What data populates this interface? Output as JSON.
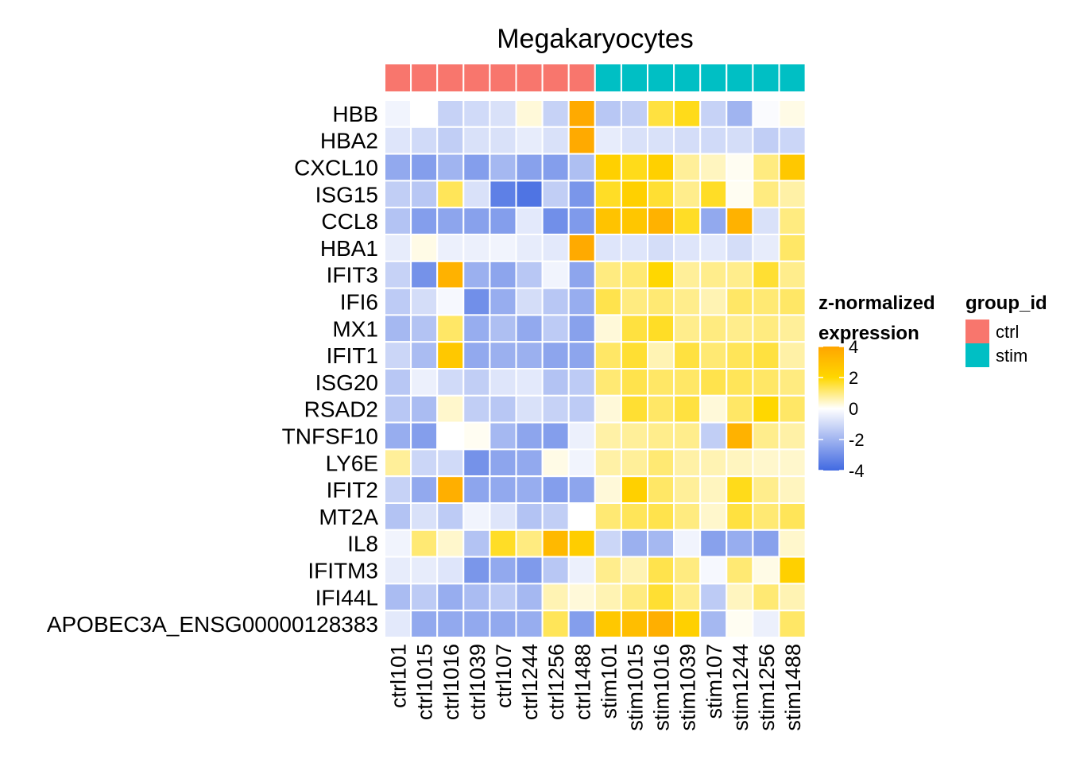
{
  "chart_data": {
    "type": "heatmap",
    "title": "Megakaryocytes",
    "rows": [
      "HBB",
      "HBA2",
      "CXCL10",
      "ISG15",
      "CCL8",
      "HBA1",
      "IFIT3",
      "IFI6",
      "MX1",
      "IFIT1",
      "ISG20",
      "RSAD2",
      "TNFSF10",
      "LY6E",
      "IFIT2",
      "MT2A",
      "IL8",
      "IFITM3",
      "IFI44L",
      "APOBEC3A_ENSG00000128383"
    ],
    "columns": [
      "ctrl101",
      "ctrl1015",
      "ctrl1016",
      "ctrl1039",
      "ctrl107",
      "ctrl1244",
      "ctrl1256",
      "ctrl1488",
      "stim101",
      "stim1015",
      "stim1016",
      "stim1039",
      "stim107",
      "stim1244",
      "stim1256",
      "stim1488"
    ],
    "column_groups": [
      "ctrl",
      "ctrl",
      "ctrl",
      "ctrl",
      "ctrl",
      "ctrl",
      "ctrl",
      "ctrl",
      "stim",
      "stim",
      "stim",
      "stim",
      "stim",
      "stim",
      "stim",
      "stim"
    ],
    "values": [
      [
        -0.3,
        0.0,
        -1.2,
        -1.0,
        -0.8,
        0.3,
        -1.2,
        3.8,
        -1.5,
        -1.3,
        1.5,
        1.8,
        -1.2,
        -2.0,
        -0.1,
        0.2
      ],
      [
        -0.7,
        -1.0,
        -1.3,
        -0.8,
        -0.8,
        -0.5,
        -0.8,
        3.8,
        -0.5,
        -0.8,
        -0.8,
        -0.9,
        -1.0,
        -0.9,
        -1.3,
        -1.1
      ],
      [
        -2.3,
        -2.6,
        -2.0,
        -2.6,
        -1.9,
        -2.5,
        -2.6,
        -1.7,
        2.3,
        1.8,
        2.3,
        0.8,
        0.5,
        0.1,
        1.0,
        2.6
      ],
      [
        -1.3,
        -1.5,
        1.3,
        -0.8,
        -3.4,
        -3.7,
        -1.3,
        -2.8,
        1.7,
        2.3,
        1.6,
        0.9,
        1.7,
        0.1,
        1.0,
        0.7
      ],
      [
        -1.6,
        -2.6,
        -2.4,
        -2.5,
        -2.6,
        -0.6,
        -3.0,
        -2.7,
        2.8,
        2.7,
        3.5,
        1.7,
        -2.3,
        3.5,
        -0.8,
        1.0
      ],
      [
        -0.5,
        0.2,
        -0.4,
        -0.4,
        -0.3,
        -0.5,
        -0.6,
        3.8,
        -0.7,
        -0.7,
        -0.9,
        -0.7,
        -0.6,
        -0.9,
        -0.5,
        1.2
      ],
      [
        -1.2,
        -2.9,
        3.5,
        -2.1,
        -2.4,
        -1.5,
        -0.3,
        -2.4,
        1.0,
        1.1,
        2.0,
        0.8,
        0.9,
        0.9,
        1.6,
        0.9
      ],
      [
        -1.4,
        -0.9,
        -0.2,
        -3.0,
        -2.2,
        -0.9,
        -1.5,
        -2.2,
        1.4,
        1.0,
        1.1,
        0.9,
        0.6,
        1.2,
        1.1,
        1.2
      ],
      [
        -1.9,
        -1.6,
        1.2,
        -2.2,
        -1.7,
        -2.3,
        -1.4,
        -2.5,
        0.3,
        1.5,
        1.7,
        0.9,
        1.0,
        0.9,
        1.0,
        0.8
      ],
      [
        -1.1,
        -1.8,
        2.6,
        -2.3,
        -2.1,
        -2.1,
        -2.4,
        -2.4,
        1.2,
        1.6,
        0.6,
        1.5,
        1.1,
        1.3,
        1.5,
        0.7
      ],
      [
        -1.5,
        -0.4,
        -1.0,
        -1.3,
        -0.7,
        -0.6,
        -1.6,
        -1.4,
        1.1,
        1.4,
        1.2,
        1.2,
        1.4,
        1.3,
        1.2,
        1.0
      ],
      [
        -1.5,
        -1.8,
        0.4,
        -1.3,
        -1.5,
        -0.8,
        -1.2,
        -1.4,
        0.3,
        1.6,
        1.2,
        1.5,
        0.3,
        1.2,
        2.0,
        1.2
      ],
      [
        -2.2,
        -2.6,
        0.0,
        0.1,
        -1.9,
        -2.4,
        -2.6,
        -0.4,
        0.7,
        0.8,
        0.9,
        0.9,
        -1.3,
        3.5,
        0.9,
        0.7
      ],
      [
        0.8,
        -1.1,
        -1.0,
        -2.9,
        -2.4,
        -2.3,
        0.2,
        -0.3,
        0.7,
        0.8,
        1.1,
        0.7,
        0.6,
        0.5,
        0.4,
        0.4
      ],
      [
        -1.2,
        -2.3,
        3.6,
        -2.4,
        -2.3,
        -2.2,
        -2.6,
        -2.4,
        0.3,
        2.3,
        1.2,
        0.8,
        0.5,
        1.8,
        0.9,
        0.5
      ],
      [
        -1.6,
        -0.8,
        -1.4,
        -0.3,
        -0.7,
        -1.6,
        -1.3,
        0.0,
        1.1,
        1.3,
        1.4,
        1.0,
        0.4,
        1.5,
        1.1,
        1.3
      ],
      [
        -0.3,
        1.1,
        0.4,
        -1.6,
        1.7,
        1.0,
        3.2,
        2.4,
        -1.1,
        -2.1,
        -1.9,
        -0.3,
        -2.5,
        -2.2,
        -2.5,
        0.4
      ],
      [
        -0.5,
        -0.5,
        -0.7,
        -2.8,
        -2.3,
        -2.7,
        -1.5,
        -0.4,
        0.9,
        0.6,
        1.4,
        1.0,
        -0.2,
        1.1,
        0.2,
        2.3
      ],
      [
        -1.8,
        -1.4,
        -2.2,
        -1.8,
        -1.4,
        -1.9,
        0.6,
        0.3,
        0.6,
        1.0,
        1.6,
        0.9,
        -1.4,
        0.5,
        1.1,
        0.6
      ],
      [
        -0.6,
        -2.3,
        -2.3,
        -2.3,
        -2.3,
        -2.2,
        1.3,
        -2.6,
        2.6,
        3.0,
        3.6,
        2.3,
        -1.9,
        0.1,
        -0.4,
        1.2
      ]
    ],
    "legend": {
      "title_line1": "z-normalized",
      "title_line2": "expression",
      "ticks": [
        4,
        2,
        0,
        -2,
        -4
      ],
      "tick_labels": [
        "4",
        "2",
        "0",
        "-2",
        "-4"
      ],
      "range": [
        -4,
        4
      ],
      "colors": [
        "#4169E1",
        "#FFFFFF",
        "#FFD700",
        "#FFA500"
      ],
      "placement": "right"
    },
    "group_legend": {
      "title": "group_id",
      "items": [
        {
          "label": "ctrl",
          "color": "#F8766D"
        },
        {
          "label": "stim",
          "color": "#00BFC4"
        }
      ],
      "placement": "right"
    }
  }
}
